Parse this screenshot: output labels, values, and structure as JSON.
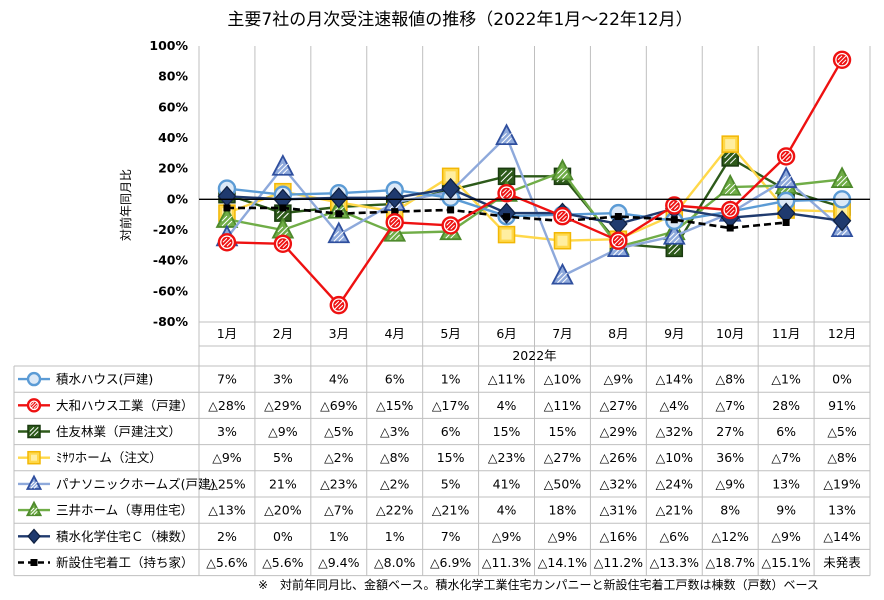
{
  "title": "主要7社の月次受注速報値の推移（2022年1月～22年12月）",
  "footnote": "※　対前年同月比、金額ベース。積水化学工業住宅カンパニーと新設住宅着工戸数は棟数（戸数）ベース",
  "chart_data": {
    "type": "line",
    "title": "主要7社の月次受注速報値の推移（2022年1月～22年12月）",
    "xlabel": "2022年",
    "ylabel": "対前年同月比",
    "categories": [
      "1月",
      "2月",
      "3月",
      "4月",
      "5月",
      "6月",
      "7月",
      "8月",
      "9月",
      "10月",
      "11月",
      "12月"
    ],
    "ylim": [
      -80,
      100
    ],
    "yticks": [
      100,
      80,
      60,
      40,
      20,
      0,
      -20,
      -40,
      -60,
      -80
    ],
    "ytick_labels": [
      "100%",
      "80%",
      "60%",
      "40%",
      "20%",
      "0%",
      "-20%",
      "-40%",
      "-60%",
      "-80%"
    ],
    "grid": "vertical",
    "series": [
      {
        "name": "積水ハウス(戸建)",
        "color": "#5b9bd5",
        "marker": "circle",
        "values": [
          7,
          3,
          4,
          6,
          1,
          -11,
          -10,
          -9,
          -14,
          -8,
          -1,
          0
        ],
        "labels": [
          "7%",
          "3%",
          "4%",
          "6%",
          "1%",
          "△11%",
          "△10%",
          "△9%",
          "△14%",
          "△8%",
          "△1%",
          "0%"
        ]
      },
      {
        "name": "大和ハウス工業（戸建）",
        "color": "#ee1111",
        "marker": "circle",
        "values": [
          -28,
          -29,
          -69,
          -15,
          -17,
          4,
          -11,
          -27,
          -4,
          -7,
          28,
          91
        ],
        "labels": [
          "△28%",
          "△29%",
          "△69%",
          "△15%",
          "△17%",
          "4%",
          "△11%",
          "△27%",
          "△4%",
          "△7%",
          "28%",
          "91%"
        ]
      },
      {
        "name": "住友林業（戸建注文）",
        "color": "#2d5a1a",
        "marker": "square",
        "values": [
          3,
          -9,
          -5,
          -3,
          6,
          15,
          15,
          -29,
          -32,
          27,
          6,
          -5
        ],
        "labels": [
          "3%",
          "△9%",
          "△5%",
          "△3%",
          "6%",
          "15%",
          "15%",
          "△29%",
          "△32%",
          "27%",
          "6%",
          "△5%"
        ]
      },
      {
        "name": "ﾐｻﾜホーム（注文）",
        "color": "#ffd84a",
        "marker": "square",
        "values": [
          -9,
          5,
          -2,
          -8,
          15,
          -23,
          -27,
          -26,
          -10,
          36,
          -7,
          -8
        ],
        "labels": [
          "△9%",
          "5%",
          "△2%",
          "△8%",
          "15%",
          "△23%",
          "△27%",
          "△26%",
          "△10%",
          "36%",
          "△7%",
          "△8%"
        ]
      },
      {
        "name": "パナソニックホームズ(戸建)",
        "color": "#8ea9db",
        "marker": "triangle",
        "values": [
          -25,
          21,
          -23,
          -2,
          5,
          41,
          -50,
          -32,
          -24,
          -9,
          13,
          -19
        ],
        "labels": [
          "△25%",
          "21%",
          "△23%",
          "△2%",
          "5%",
          "41%",
          "△50%",
          "△32%",
          "△24%",
          "△9%",
          "13%",
          "△19%"
        ]
      },
      {
        "name": "三井ホーム（専用住宅）",
        "color": "#70ad47",
        "marker": "triangle",
        "values": [
          -13,
          -20,
          -7,
          -22,
          -21,
          4,
          18,
          -31,
          -21,
          8,
          9,
          13
        ],
        "labels": [
          "△13%",
          "△20%",
          "△7%",
          "△22%",
          "△21%",
          "4%",
          "18%",
          "△31%",
          "△21%",
          "8%",
          "9%",
          "13%"
        ]
      },
      {
        "name": "積水化学住宅Ｃ（棟数）",
        "color": "#1f3a6e",
        "marker": "diamond",
        "values": [
          2,
          0,
          1,
          1,
          7,
          -9,
          -9,
          -16,
          -6,
          -12,
          -9,
          -14
        ],
        "labels": [
          "2%",
          "0%",
          "1%",
          "1%",
          "7%",
          "△9%",
          "△9%",
          "△16%",
          "△6%",
          "△12%",
          "△9%",
          "△14%"
        ]
      },
      {
        "name": "新設住宅着工（持ち家）",
        "color": "#000000",
        "marker": "dash",
        "values": [
          -5.6,
          -5.6,
          -9.4,
          -8.0,
          -6.9,
          -11.3,
          -14.1,
          -11.2,
          -13.3,
          -18.7,
          -15.1,
          null
        ],
        "labels": [
          "△5.6%",
          "△5.6%",
          "△9.4%",
          "△8.0%",
          "△6.9%",
          "△11.3%",
          "△14.1%",
          "△11.2%",
          "△13.3%",
          "△18.7%",
          "△15.1%",
          "未発表"
        ]
      }
    ]
  }
}
